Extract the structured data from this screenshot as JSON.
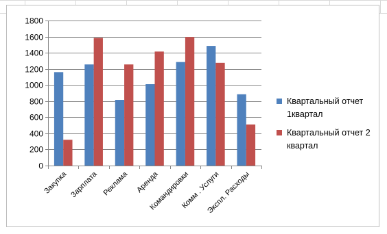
{
  "chart_data": {
    "type": "bar",
    "categories": [
      "Закупка",
      "Зарплата",
      "Реклама",
      "Аренда",
      "Командировки",
      "Комм . Услуги",
      "Экспл. Расходы"
    ],
    "series": [
      {
        "name_lines": [
          "Квартальный отчет",
          "1квартал"
        ],
        "color": "#4F81BD",
        "values": [
          1160,
          1255,
          815,
          1010,
          1285,
          1485,
          885
        ]
      },
      {
        "name_lines": [
          "Квартальный отчет 2",
          "квартал"
        ],
        "color": "#C0504D",
        "values": [
          320,
          1585,
          1255,
          1415,
          1595,
          1275,
          510
        ]
      }
    ],
    "yticks": [
      "0",
      "200",
      "400",
      "600",
      "800",
      "1000",
      "1200",
      "1400",
      "1600",
      "1800"
    ],
    "ylim": [
      0,
      1800
    ],
    "grid": true,
    "legend": "right"
  }
}
